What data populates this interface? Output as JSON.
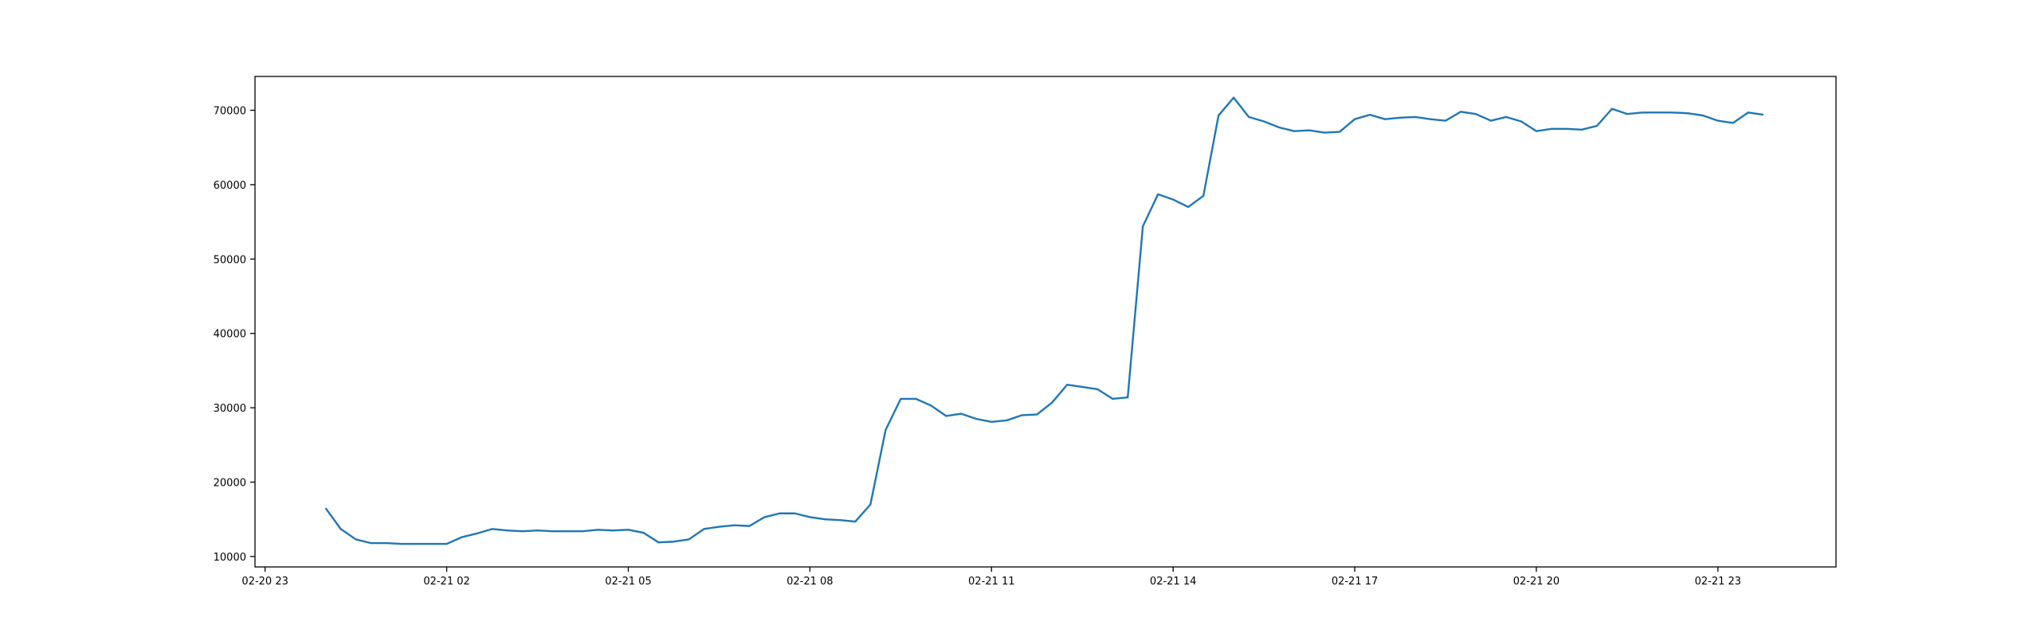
{
  "chart_data": {
    "type": "line",
    "color": "#1f77b4",
    "x": [
      "02-21 00:00",
      "02-21 00:15",
      "02-21 00:30",
      "02-21 00:45",
      "02-21 01:00",
      "02-21 01:15",
      "02-21 01:30",
      "02-21 01:45",
      "02-21 02:00",
      "02-21 02:15",
      "02-21 02:30",
      "02-21 02:45",
      "02-21 03:00",
      "02-21 03:15",
      "02-21 03:30",
      "02-21 03:45",
      "02-21 04:00",
      "02-21 04:15",
      "02-21 04:30",
      "02-21 04:45",
      "02-21 05:00",
      "02-21 05:15",
      "02-21 05:30",
      "02-21 05:45",
      "02-21 06:00",
      "02-21 06:15",
      "02-21 06:30",
      "02-21 06:45",
      "02-21 07:00",
      "02-21 07:15",
      "02-21 07:30",
      "02-21 07:45",
      "02-21 08:00",
      "02-21 08:15",
      "02-21 08:30",
      "02-21 08:45",
      "02-21 09:00",
      "02-21 09:15",
      "02-21 09:30",
      "02-21 09:45",
      "02-21 10:00",
      "02-21 10:15",
      "02-21 10:30",
      "02-21 10:45",
      "02-21 11:00",
      "02-21 11:15",
      "02-21 11:30",
      "02-21 11:45",
      "02-21 12:00",
      "02-21 12:15",
      "02-21 12:30",
      "02-21 12:45",
      "02-21 13:00",
      "02-21 13:15",
      "02-21 13:30",
      "02-21 13:45",
      "02-21 14:00",
      "02-21 14:15",
      "02-21 14:30",
      "02-21 14:45",
      "02-21 15:00",
      "02-21 15:15",
      "02-21 15:30",
      "02-21 15:45",
      "02-21 16:00",
      "02-21 16:15",
      "02-21 16:30",
      "02-21 16:45",
      "02-21 17:00",
      "02-21 17:15",
      "02-21 17:30",
      "02-21 17:45",
      "02-21 18:00",
      "02-21 18:15",
      "02-21 18:30",
      "02-21 18:45",
      "02-21 19:00",
      "02-21 19:15",
      "02-21 19:30",
      "02-21 19:45",
      "02-21 20:00",
      "02-21 20:15",
      "02-21 20:30",
      "02-21 20:45",
      "02-21 21:00",
      "02-21 21:15",
      "02-21 21:30",
      "02-21 21:45",
      "02-21 22:00",
      "02-21 22:15",
      "02-21 22:30",
      "02-21 22:45",
      "02-21 23:00",
      "02-21 23:15",
      "02-21 23:30",
      "02-21 23:45"
    ],
    "values": [
      16500,
      13700,
      12300,
      11800,
      11800,
      11700,
      11700,
      11700,
      11700,
      12600,
      13100,
      13700,
      13500,
      13400,
      13500,
      13400,
      13400,
      13400,
      13600,
      13500,
      13600,
      13200,
      11900,
      12000,
      12300,
      13700,
      14000,
      14200,
      14100,
      15300,
      15800,
      15800,
      15300,
      15000,
      14900,
      14700,
      17000,
      27000,
      31200,
      31200,
      30300,
      28900,
      29200,
      28500,
      28100,
      28300,
      29000,
      29100,
      30700,
      33100,
      32800,
      32500,
      31200,
      31400,
      54400,
      58700,
      58000,
      57000,
      58500,
      69300,
      71700,
      69100,
      68500,
      67700,
      67200,
      67300,
      67000,
      67100,
      68800,
      69400,
      68800,
      69000,
      69100,
      68800,
      68600,
      69800,
      69500,
      68600,
      69100,
      68500,
      67200,
      67500,
      67500,
      67400,
      67900,
      70200,
      69500,
      69700,
      69700,
      69700,
      69600,
      69300,
      68600,
      68300,
      69700,
      69400
    ],
    "xlim": [
      "02-20 22:50",
      "02-22 00:57"
    ],
    "xticks": [
      "02-20 23",
      "02-21 02",
      "02-21 05",
      "02-21 08",
      "02-21 11",
      "02-21 14",
      "02-21 17",
      "02-21 20",
      "02-21 23"
    ],
    "ylim": [
      8600,
      74550
    ],
    "yticks": [
      10000,
      20000,
      30000,
      40000,
      50000,
      60000,
      70000
    ]
  }
}
